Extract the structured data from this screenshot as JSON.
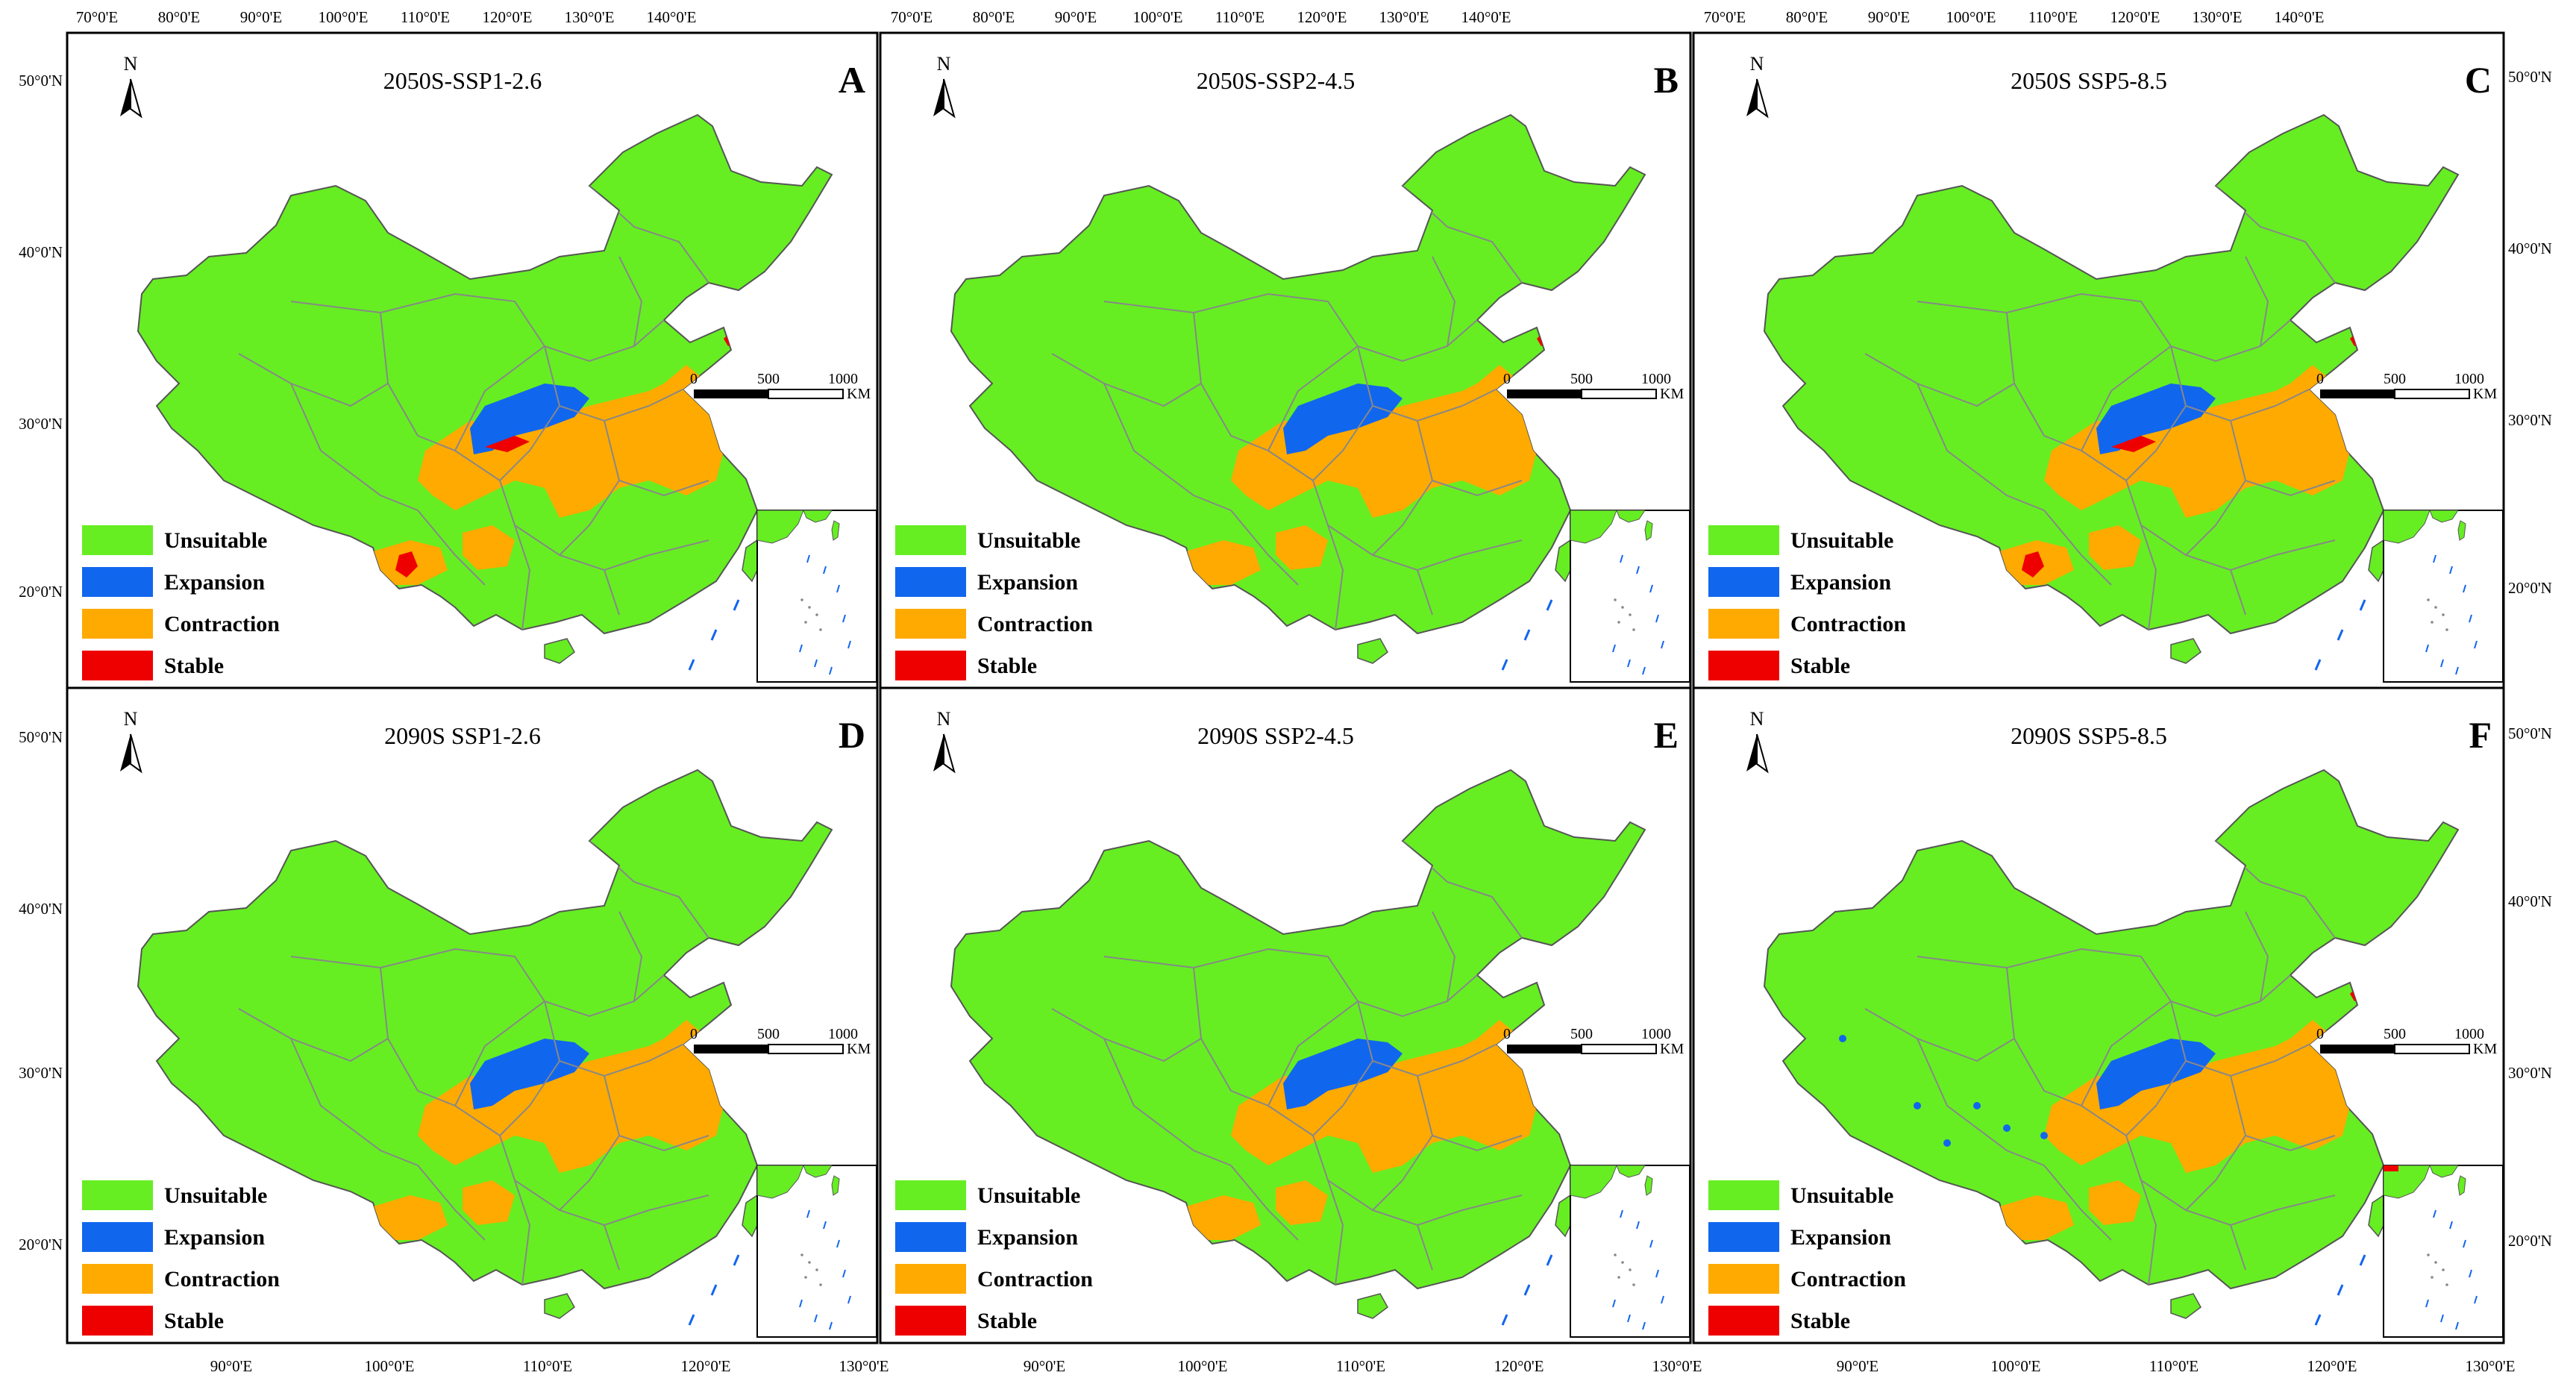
{
  "colors": {
    "unsuitable": "#66ee22",
    "expansion": "#1166ee",
    "contraction": "#ffaa00",
    "stable": "#ee0000",
    "border": "#888888",
    "sea": "#ffffff"
  },
  "legend": [
    {
      "key": "unsuitable",
      "label": "Unsuitable"
    },
    {
      "key": "expansion",
      "label": "Expansion"
    },
    {
      "key": "contraction",
      "label": "Contraction"
    },
    {
      "key": "stable",
      "label": "Stable"
    }
  ],
  "north_label": "N",
  "scalebar": {
    "ticks": [
      "0",
      "500",
      "1000"
    ],
    "unit": "KM"
  },
  "top_axis_labels": [
    "70°0'E",
    "80°0'E",
    "90°0'E",
    "100°0'E",
    "110°0'E",
    "120°0'E",
    "130°0'E",
    "140°0'E"
  ],
  "bottom_axis_labels": [
    "90°0'E",
    "100°0'E",
    "110°0'E",
    "120°0'E",
    "130°0'E"
  ],
  "left_axis_top": [
    "50°0'N",
    "40°0'N",
    "30°0'N",
    "20°0'N"
  ],
  "left_axis_bottom": [
    "50°0'N",
    "40°0'N",
    "30°0'N",
    "20°0'N"
  ],
  "right_axis_top": [
    "50°0'N",
    "40°0'N",
    "30°0'N",
    "20°0'N"
  ],
  "right_axis_bottom": [
    "50°0'N",
    "40°0'N",
    "30°0'N",
    "20°0'N"
  ],
  "panels": [
    {
      "id": "A",
      "title": "2050S-SSP1-2.6",
      "stable_sw": true,
      "stable_ne": true,
      "scattered_expansion": false
    },
    {
      "id": "B",
      "title": "2050S-SSP2-4.5",
      "stable_sw": false,
      "stable_ne": true,
      "scattered_expansion": false
    },
    {
      "id": "C",
      "title": "2050S SSP5-8.5",
      "stable_sw": true,
      "stable_ne": true,
      "scattered_expansion": false
    },
    {
      "id": "D",
      "title": "2090S SSP1-2.6",
      "stable_sw": false,
      "stable_ne": false,
      "scattered_expansion": false
    },
    {
      "id": "E",
      "title": "2090S SSP2-4.5",
      "stable_sw": false,
      "stable_ne": false,
      "scattered_expansion": false
    },
    {
      "id": "F",
      "title": "2090S SSP5-8.5",
      "stable_sw": false,
      "stable_ne": true,
      "scattered_expansion": true
    }
  ]
}
